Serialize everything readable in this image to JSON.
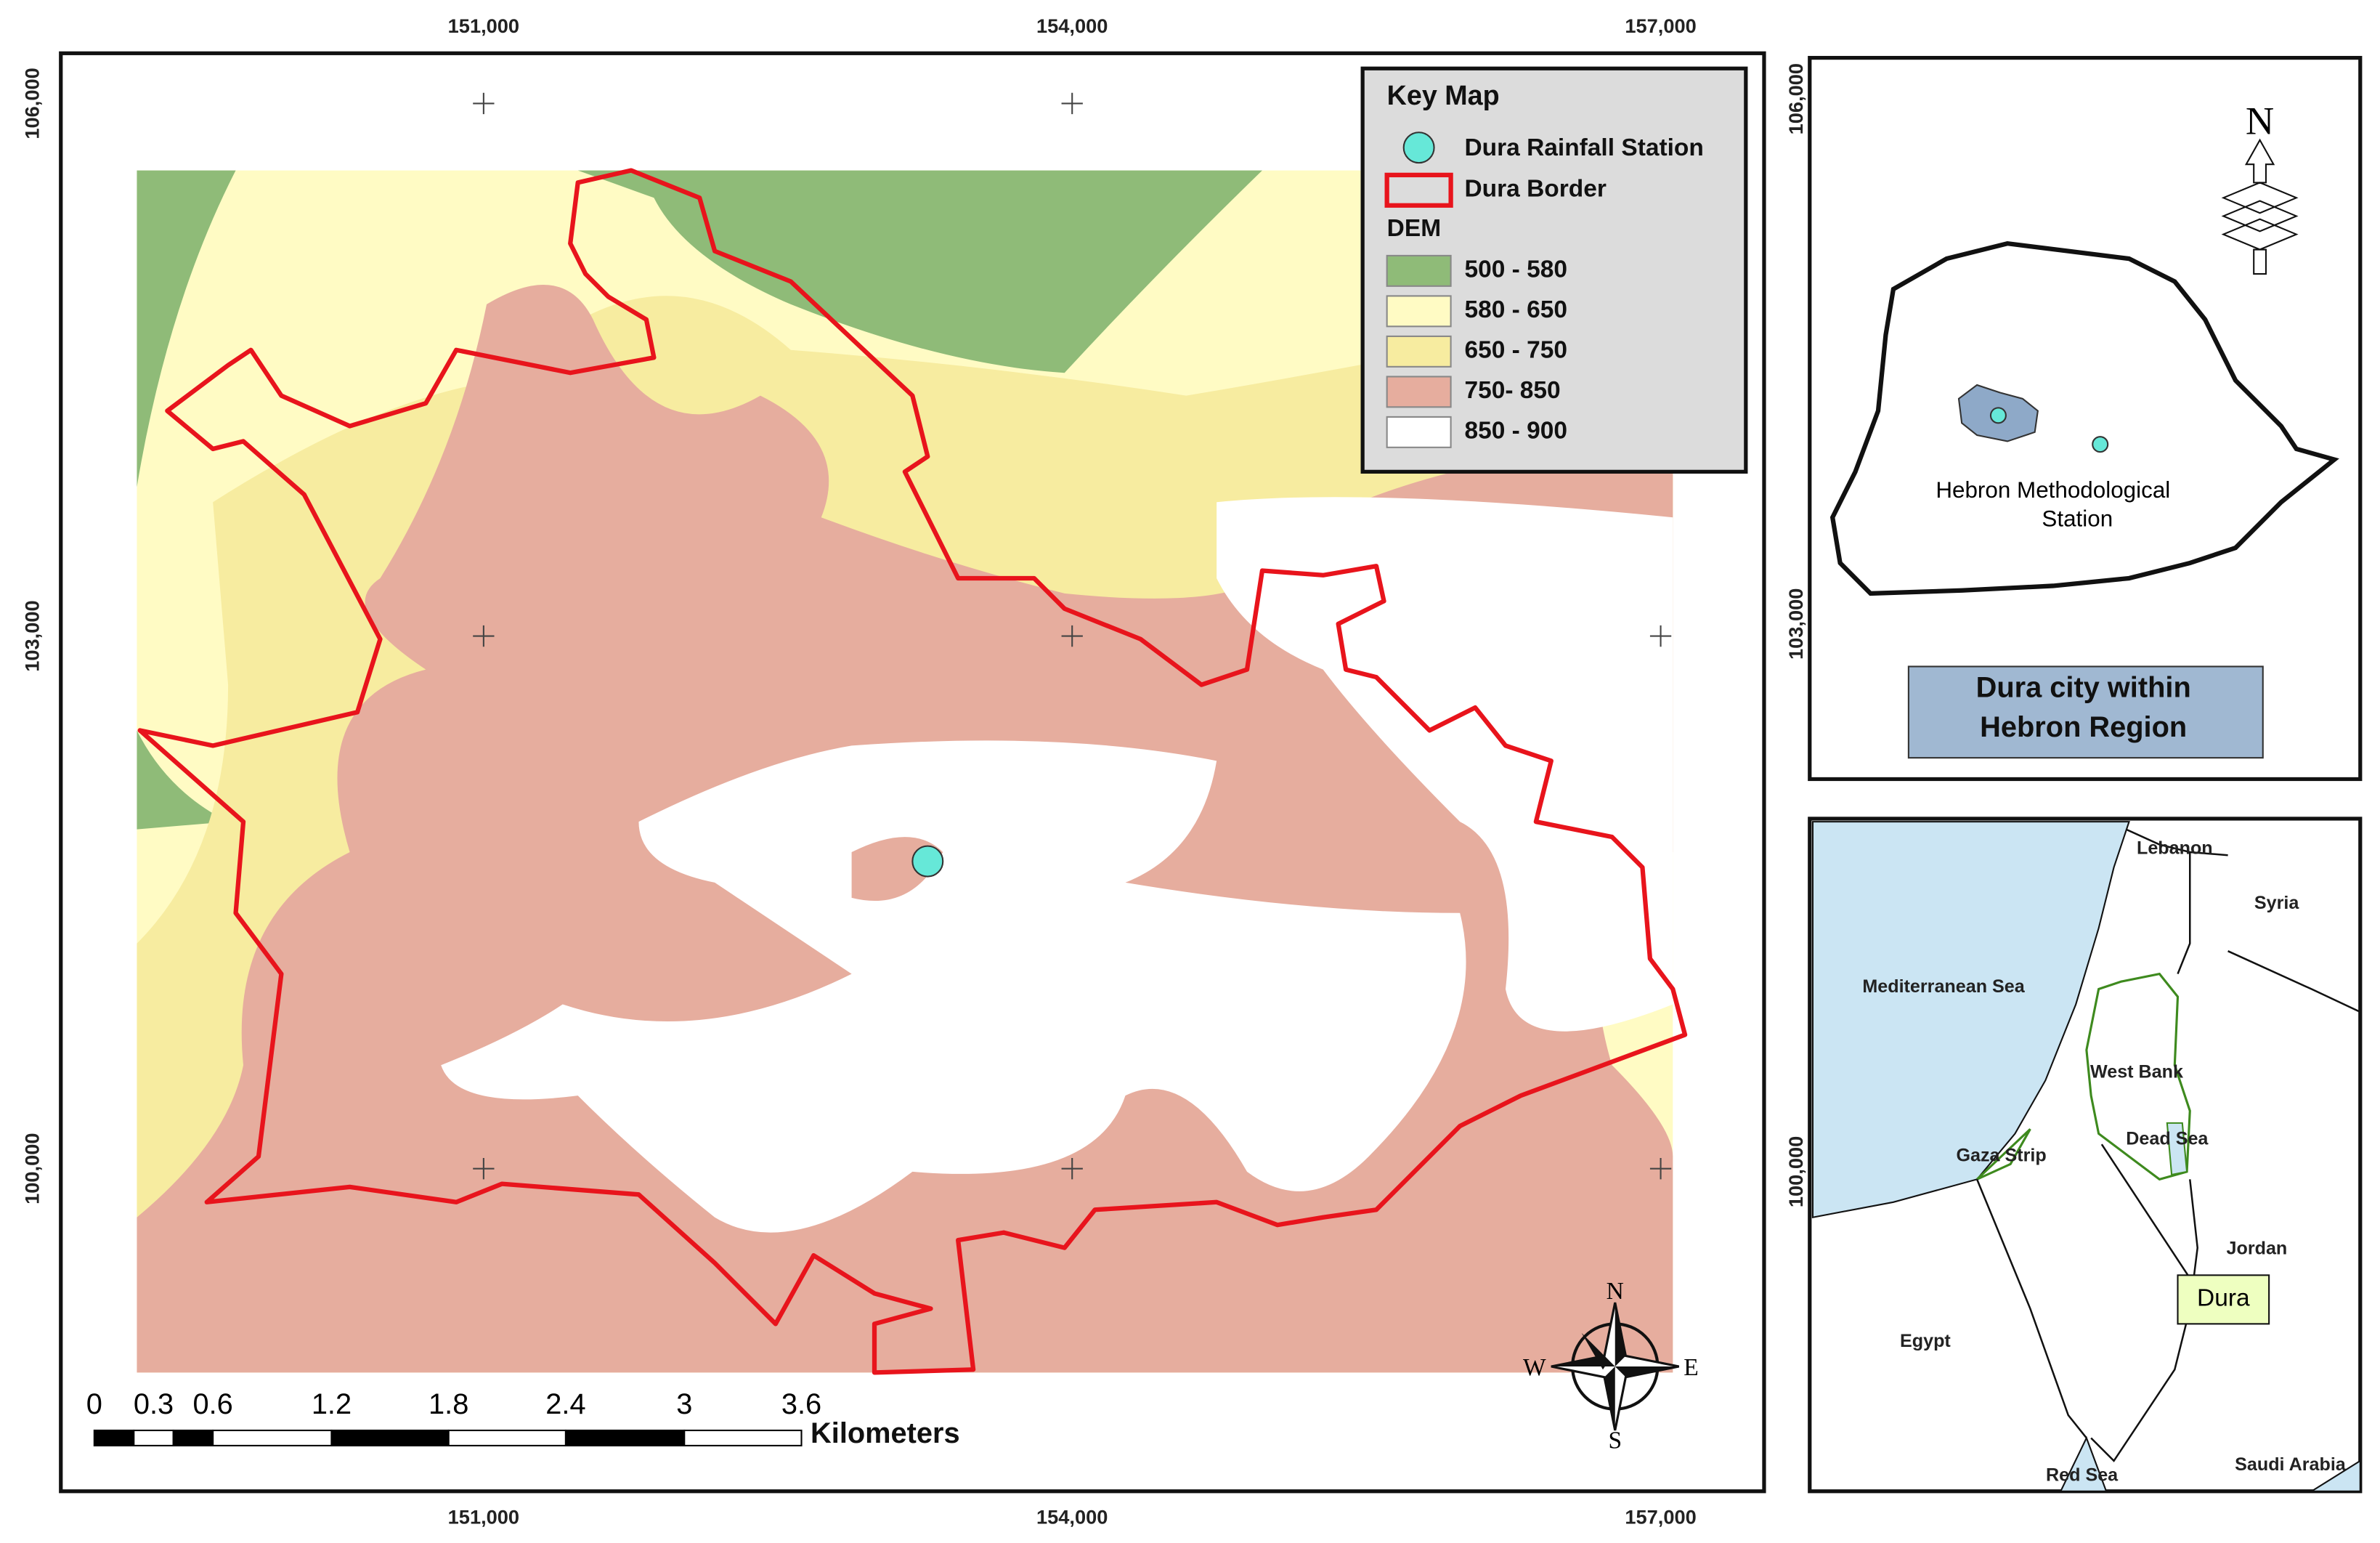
{
  "main_map": {
    "x_labels": [
      "151,000",
      "154,000",
      "157,000"
    ],
    "y_labels": [
      "106,000",
      "103,000",
      "100,000"
    ]
  },
  "legend": {
    "title": "Key Map",
    "items": [
      {
        "label": "Dura Rainfall Station",
        "color": "#66e8d8"
      },
      {
        "label": "Dura Border",
        "color": "#e8141c"
      }
    ],
    "dem_title": "DEM",
    "classes": [
      {
        "label": "500 - 580",
        "color": "#8fbb78"
      },
      {
        "label": "580 - 650",
        "color": "#fffbc4"
      },
      {
        "label": "650 - 750",
        "color": "#f7eca0"
      },
      {
        "label": "750- 850",
        "color": "#e6ad9e"
      },
      {
        "label": "850 - 900",
        "color": "#ffffff"
      }
    ]
  },
  "scale_bar": {
    "labels": [
      "0",
      "0.3",
      "0.6",
      "1.2",
      "1.8",
      "2.4",
      "3",
      "3.6"
    ],
    "unit": "Kilometers"
  },
  "compass": {
    "n": "N",
    "s": "S",
    "e": "E",
    "w": "W"
  },
  "right_axis_labels": [
    "106,000",
    "103,000",
    "100,000"
  ],
  "hebron_inset": {
    "north": "N",
    "station_label": [
      "Hebron Methodological",
      "Station"
    ],
    "title": [
      "Dura city within",
      "Hebron Region"
    ]
  },
  "region_inset": {
    "labels": [
      "Lebanon",
      "Syria",
      "Mediterranean Sea",
      "West Bank",
      "Gaza Strip",
      "Dead Sea",
      "Jordan",
      "Egypt",
      "Red Sea",
      "Saudi Arabia"
    ],
    "callout": "Dura"
  }
}
